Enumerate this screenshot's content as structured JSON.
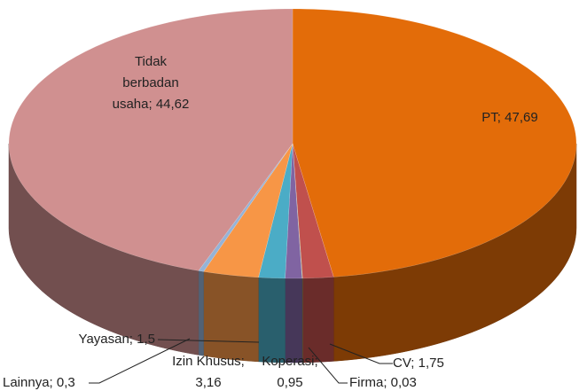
{
  "chart_data": {
    "type": "pie3d",
    "values": [
      47.69,
      1.75,
      0.03,
      0.95,
      1.5,
      3.16,
      0.3,
      44.62
    ],
    "value_labels": [
      "PT; 47,69",
      "CV; 1,75",
      "Firma; 0,03",
      "Koperasi; 0,95",
      "Yayasan; 1,5",
      "Izin Khusus; 3,16",
      "Lainnya; 0,3",
      "Tidak berbadan usaha; 44,62"
    ],
    "colors": [
      "#e36c09",
      "#c0504d",
      "#9bbb59",
      "#8064a2",
      "#4bacc6",
      "#f79646",
      "#95b3d7",
      "#d09090"
    ]
  }
}
